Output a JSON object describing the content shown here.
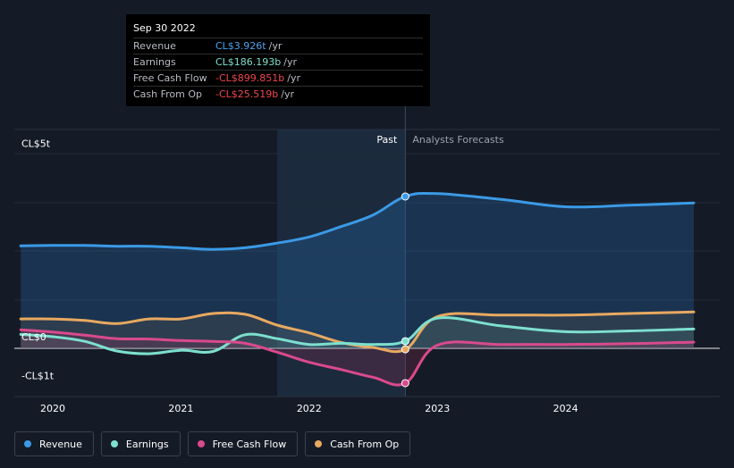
{
  "tooltip": {
    "date": "Sep 30 2022",
    "rows": [
      {
        "name": "Revenue",
        "value": "CL$3.926t",
        "unit": "/yr",
        "color": "#4aa3f0"
      },
      {
        "name": "Earnings",
        "value": "CL$186.193b",
        "unit": "/yr",
        "color": "#7de0cf"
      },
      {
        "name": "Free Cash Flow",
        "value": "-CL$899.851b",
        "unit": "/yr",
        "color": "#f0474f"
      },
      {
        "name": "Cash From Op",
        "value": "-CL$25.519b",
        "unit": "/yr",
        "color": "#f0474f"
      }
    ]
  },
  "chart_data": {
    "type": "line",
    "y_ticks": [
      {
        "label": "CL$5t",
        "value": 5
      },
      {
        "label": "CL$0",
        "value": 0
      },
      {
        "label": "-CL$1t",
        "value": -1
      }
    ],
    "y_unit": "trillion CLP",
    "ylim": [
      -1,
      5
    ],
    "xlim": [
      2019.7,
      2025.0
    ],
    "x_ticks": [
      "2020",
      "2021",
      "2022",
      "2023",
      "2024"
    ],
    "x_tick_values": [
      2020,
      2021,
      2022,
      2023,
      2024
    ],
    "past_label": "Past",
    "forecast_label": "Analysts Forecasts",
    "divider_x": 2022.75,
    "highlight_start_x": 2021.75,
    "series": [
      {
        "name": "Revenue",
        "color": "#3b9ae6",
        "points": [
          [
            2019.75,
            2.65
          ],
          [
            2020.0,
            2.66
          ],
          [
            2020.25,
            2.66
          ],
          [
            2020.5,
            2.64
          ],
          [
            2020.75,
            2.64
          ],
          [
            2021.0,
            2.6
          ],
          [
            2021.25,
            2.56
          ],
          [
            2021.5,
            2.6
          ],
          [
            2021.75,
            2.72
          ],
          [
            2022.0,
            2.88
          ],
          [
            2022.25,
            3.15
          ],
          [
            2022.5,
            3.45
          ],
          [
            2022.75,
            3.926
          ],
          [
            2023.0,
            4.0
          ],
          [
            2023.5,
            3.85
          ],
          [
            2024.0,
            3.66
          ],
          [
            2024.5,
            3.7
          ],
          [
            2025.0,
            3.76
          ]
        ]
      },
      {
        "name": "Earnings",
        "color": "#7de0cf",
        "points": [
          [
            2019.75,
            0.36
          ],
          [
            2020.0,
            0.3
          ],
          [
            2020.25,
            0.18
          ],
          [
            2020.5,
            -0.07
          ],
          [
            2020.75,
            -0.14
          ],
          [
            2021.0,
            -0.05
          ],
          [
            2021.25,
            -0.08
          ],
          [
            2021.5,
            0.35
          ],
          [
            2021.75,
            0.25
          ],
          [
            2022.0,
            0.1
          ],
          [
            2022.25,
            0.13
          ],
          [
            2022.5,
            0.1
          ],
          [
            2022.75,
            0.186
          ],
          [
            2023.0,
            0.78
          ],
          [
            2023.5,
            0.58
          ],
          [
            2024.0,
            0.43
          ],
          [
            2024.5,
            0.45
          ],
          [
            2025.0,
            0.5
          ]
        ]
      },
      {
        "name": "Free Cash Flow",
        "color": "#d94a8c",
        "points": [
          [
            2019.75,
            0.48
          ],
          [
            2020.0,
            0.42
          ],
          [
            2020.25,
            0.34
          ],
          [
            2020.5,
            0.25
          ],
          [
            2020.75,
            0.24
          ],
          [
            2021.0,
            0.2
          ],
          [
            2021.25,
            0.18
          ],
          [
            2021.5,
            0.13
          ],
          [
            2021.75,
            -0.1
          ],
          [
            2022.0,
            -0.36
          ],
          [
            2022.25,
            -0.55
          ],
          [
            2022.5,
            -0.75
          ],
          [
            2022.75,
            -0.9
          ],
          [
            2023.0,
            0.08
          ],
          [
            2023.5,
            0.1
          ],
          [
            2024.0,
            0.1
          ],
          [
            2024.5,
            0.12
          ],
          [
            2025.0,
            0.16
          ]
        ]
      },
      {
        "name": "Cash From Op",
        "color": "#e8a960",
        "points": [
          [
            2019.75,
            0.76
          ],
          [
            2020.0,
            0.76
          ],
          [
            2020.25,
            0.72
          ],
          [
            2020.5,
            0.64
          ],
          [
            2020.75,
            0.76
          ],
          [
            2021.0,
            0.76
          ],
          [
            2021.25,
            0.9
          ],
          [
            2021.5,
            0.88
          ],
          [
            2021.75,
            0.6
          ],
          [
            2022.0,
            0.4
          ],
          [
            2022.25,
            0.15
          ],
          [
            2022.5,
            0.02
          ],
          [
            2022.75,
            -0.026
          ],
          [
            2023.0,
            0.82
          ],
          [
            2023.5,
            0.86
          ],
          [
            2024.0,
            0.86
          ],
          [
            2024.5,
            0.9
          ],
          [
            2025.0,
            0.94
          ]
        ]
      }
    ]
  },
  "legend": [
    {
      "label": "Revenue",
      "color": "#3b9ae6"
    },
    {
      "label": "Earnings",
      "color": "#7de0cf"
    },
    {
      "label": "Free Cash Flow",
      "color": "#d94a8c"
    },
    {
      "label": "Cash From Op",
      "color": "#e8a960"
    }
  ]
}
